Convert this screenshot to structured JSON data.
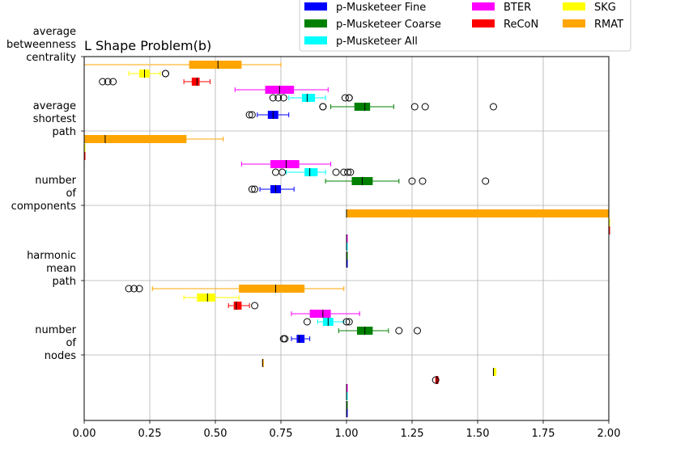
{
  "chart_data": {
    "type": "boxplot",
    "title": "L Shape Problem(b)",
    "xlabel": "",
    "ylabel": "",
    "xlim": [
      0,
      2.0
    ],
    "x_ticks": [
      0.0,
      0.25,
      0.5,
      0.75,
      1.0,
      1.25,
      1.5,
      1.75,
      2.0
    ],
    "x_tick_labels": [
      "0.00",
      "0.25",
      "0.50",
      "0.75",
      "1.00",
      "1.25",
      "1.50",
      "1.75",
      "2.00"
    ],
    "grid": true,
    "legend_position": "top-right, above plot",
    "series": [
      {
        "name": "p-Musketeer Fine",
        "color": "#0000ff"
      },
      {
        "name": "p-Musketeer Coarse",
        "color": "#008000"
      },
      {
        "name": "p-Musketeer All",
        "color": "#00ffff"
      },
      {
        "name": "BTER",
        "color": "#ff00ff"
      },
      {
        "name": "ReCoN",
        "color": "#ff0000"
      },
      {
        "name": "SKG",
        "color": "#ffff00"
      },
      {
        "name": "RMAT",
        "color": "#ffa500"
      }
    ],
    "groups": [
      {
        "label": "average betweenness centrality",
        "label_lines": [
          "average",
          "betweenness",
          "centrality"
        ],
        "boxes": [
          {
            "series": "RMAT",
            "whislo": 0.0,
            "q1": 0.4,
            "med": 0.51,
            "q3": 0.6,
            "whishi": 0.75,
            "fliers": []
          },
          {
            "series": "SKG",
            "whislo": 0.17,
            "q1": 0.21,
            "med": 0.23,
            "q3": 0.25,
            "whishi": 0.29,
            "fliers": [
              0.31,
              0.31
            ]
          },
          {
            "series": "ReCoN",
            "whislo": 0.38,
            "q1": 0.41,
            "med": 0.43,
            "q3": 0.44,
            "whishi": 0.48,
            "fliers": [
              0.07,
              0.09,
              0.11
            ]
          },
          {
            "series": "BTER",
            "whislo": 0.575,
            "q1": 0.69,
            "med": 0.745,
            "q3": 0.8,
            "whishi": 0.93,
            "fliers": []
          },
          {
            "series": "p-Musketeer All",
            "whislo": 0.78,
            "q1": 0.83,
            "med": 0.85,
            "q3": 0.88,
            "whishi": 0.92,
            "fliers": [
              0.72,
              0.74,
              0.76,
              0.995,
              1.01,
              1.01
            ]
          },
          {
            "series": "p-Musketeer Coarse",
            "whislo": 0.94,
            "q1": 1.03,
            "med": 1.07,
            "q3": 1.09,
            "whishi": 1.18,
            "fliers": [
              0.91,
              0.91,
              1.26,
              1.3,
              1.56
            ]
          },
          {
            "series": "p-Musketeer Fine",
            "whislo": 0.66,
            "q1": 0.7,
            "med": 0.72,
            "q3": 0.74,
            "whishi": 0.78,
            "fliers": [
              0.63,
              0.64
            ]
          }
        ]
      },
      {
        "label": "average shortest path",
        "label_lines": [
          "average",
          "shortest",
          "path"
        ],
        "boxes": [
          {
            "series": "RMAT",
            "whislo": 0.0,
            "q1": 0.0,
            "med": 0.08,
            "q3": 0.39,
            "whishi": 0.53,
            "fliers": []
          },
          {
            "series": "SKG",
            "whislo": 0.0,
            "q1": 0.0,
            "med": 0.0,
            "q3": 0.0,
            "whishi": 0.0,
            "fliers": []
          },
          {
            "series": "ReCoN",
            "whislo": 0.0,
            "q1": 0.0,
            "med": 0.0,
            "q3": 0.0,
            "whishi": 0.0,
            "fliers": []
          },
          {
            "series": "BTER",
            "whislo": 0.6,
            "q1": 0.71,
            "med": 0.77,
            "q3": 0.82,
            "whishi": 0.94,
            "fliers": []
          },
          {
            "series": "p-Musketeer All",
            "whislo": 0.77,
            "q1": 0.84,
            "med": 0.86,
            "q3": 0.89,
            "whishi": 0.92,
            "fliers": [
              0.73,
              0.755,
              0.96,
              0.99,
              1.005,
              1.015
            ]
          },
          {
            "series": "p-Musketeer Coarse",
            "whislo": 0.92,
            "q1": 1.02,
            "med": 1.06,
            "q3": 1.1,
            "whishi": 1.2,
            "fliers": [
              1.25,
              1.29,
              1.53
            ]
          },
          {
            "series": "p-Musketeer Fine",
            "whislo": 0.67,
            "q1": 0.71,
            "med": 0.73,
            "q3": 0.75,
            "whishi": 0.8,
            "fliers": [
              0.64,
              0.65
            ]
          }
        ]
      },
      {
        "label": "number of components",
        "label_lines": [
          "number",
          "of",
          "components"
        ],
        "boxes": [
          {
            "series": "RMAT",
            "whislo": 1.0,
            "q1": 1.0,
            "med": 1.0,
            "q3": 2.0,
            "whishi": 2.0,
            "fliers": []
          },
          {
            "series": "SKG",
            "whislo": 2.0,
            "q1": 2.0,
            "med": 2.0,
            "q3": 2.0,
            "whishi": 2.0,
            "fliers": []
          },
          {
            "series": "ReCoN",
            "whislo": 2.0,
            "q1": 2.0,
            "med": 2.0,
            "q3": 2.0,
            "whishi": 2.0,
            "fliers": []
          },
          {
            "series": "BTER",
            "whislo": 1.0,
            "q1": 1.0,
            "med": 1.0,
            "q3": 1.0,
            "whishi": 1.0,
            "fliers": []
          },
          {
            "series": "p-Musketeer All",
            "whislo": 1.0,
            "q1": 1.0,
            "med": 1.0,
            "q3": 1.0,
            "whishi": 1.0,
            "fliers": []
          },
          {
            "series": "p-Musketeer Coarse",
            "whislo": 1.0,
            "q1": 1.0,
            "med": 1.0,
            "q3": 1.0,
            "whishi": 1.0,
            "fliers": []
          },
          {
            "series": "p-Musketeer Fine",
            "whislo": 1.0,
            "q1": 1.0,
            "med": 1.0,
            "q3": 1.0,
            "whishi": 1.0,
            "fliers": []
          }
        ]
      },
      {
        "label": "harmonic mean path",
        "label_lines": [
          "harmonic",
          "mean",
          "path"
        ],
        "boxes": [
          {
            "series": "RMAT",
            "whislo": 0.26,
            "q1": 0.59,
            "med": 0.73,
            "q3": 0.84,
            "whishi": 0.99,
            "fliers": [
              0.17,
              0.19,
              0.21
            ]
          },
          {
            "series": "SKG",
            "whislo": 0.38,
            "q1": 0.43,
            "med": 0.47,
            "q3": 0.5,
            "whishi": 0.59,
            "fliers": []
          },
          {
            "series": "ReCoN",
            "whislo": 0.55,
            "q1": 0.57,
            "med": 0.58,
            "q3": 0.6,
            "whishi": 0.63,
            "fliers": [
              0.65
            ]
          },
          {
            "series": "BTER",
            "whislo": 0.79,
            "q1": 0.86,
            "med": 0.91,
            "q3": 0.94,
            "whishi": 1.05,
            "fliers": []
          },
          {
            "series": "p-Musketeer All",
            "whislo": 0.89,
            "q1": 0.91,
            "med": 0.93,
            "q3": 0.95,
            "whishi": 0.99,
            "fliers": [
              0.85,
              1.0,
              1.01
            ]
          },
          {
            "series": "p-Musketeer Coarse",
            "whislo": 0.97,
            "q1": 1.04,
            "med": 1.07,
            "q3": 1.1,
            "whishi": 1.16,
            "fliers": [
              1.2,
              1.27
            ]
          },
          {
            "series": "p-Musketeer Fine",
            "whislo": 0.79,
            "q1": 0.81,
            "med": 0.82,
            "q3": 0.84,
            "whishi": 0.86,
            "fliers": [
              0.76,
              0.765
            ]
          }
        ]
      },
      {
        "label": "number of nodes",
        "label_lines": [
          "number",
          "of",
          "nodes"
        ],
        "boxes": [
          {
            "series": "RMAT",
            "whislo": 0.68,
            "q1": 0.68,
            "med": 0.68,
            "q3": 0.68,
            "whishi": 0.68,
            "fliers": []
          },
          {
            "series": "SKG",
            "whislo": 1.56,
            "q1": 1.56,
            "med": 1.56,
            "q3": 1.57,
            "whishi": 1.57,
            "fliers": []
          },
          {
            "series": "ReCoN",
            "whislo": 1.34,
            "q1": 1.34,
            "med": 1.345,
            "q3": 1.35,
            "whishi": 1.35,
            "fliers": [
              1.34
            ]
          },
          {
            "series": "BTER",
            "whislo": 1.0,
            "q1": 1.0,
            "med": 1.0,
            "q3": 1.0,
            "whishi": 1.0,
            "fliers": []
          },
          {
            "series": "p-Musketeer All",
            "whislo": 1.0,
            "q1": 1.0,
            "med": 1.0,
            "q3": 1.0,
            "whishi": 1.0,
            "fliers": []
          },
          {
            "series": "p-Musketeer Coarse",
            "whislo": 1.0,
            "q1": 1.0,
            "med": 1.0,
            "q3": 1.0,
            "whishi": 1.0,
            "fliers": []
          },
          {
            "series": "p-Musketeer Fine",
            "whislo": 1.0,
            "q1": 1.0,
            "med": 1.0,
            "q3": 1.0,
            "whishi": 1.0,
            "fliers": []
          }
        ]
      }
    ]
  }
}
